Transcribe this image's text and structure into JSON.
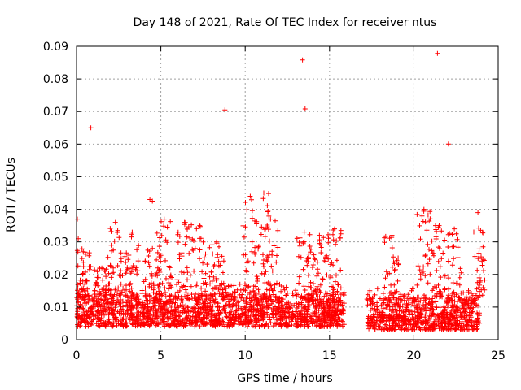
{
  "chart_data": {
    "type": "scatter",
    "title": "Day 148 of 2021, Rate Of TEC Index for receiver ntus",
    "xlabel": "GPS time / hours",
    "ylabel": "ROTI / TECUs",
    "xlim": [
      0,
      25
    ],
    "ylim": [
      0,
      0.09
    ],
    "xticks": [
      {
        "value": 0,
        "label": "0"
      },
      {
        "value": 5,
        "label": "5"
      },
      {
        "value": 10,
        "label": "10"
      },
      {
        "value": 15,
        "label": "15"
      },
      {
        "value": 20,
        "label": "20"
      },
      {
        "value": 25,
        "label": "25"
      }
    ],
    "yticks": [
      {
        "value": 0,
        "label": "0"
      },
      {
        "value": 0.01,
        "label": "0.01"
      },
      {
        "value": 0.02,
        "label": "0.02"
      },
      {
        "value": 0.03,
        "label": "0.03"
      },
      {
        "value": 0.04,
        "label": "0.04"
      },
      {
        "value": 0.05,
        "label": "0.05"
      },
      {
        "value": 0.06,
        "label": "0.06"
      },
      {
        "value": 0.07,
        "label": "0.07"
      },
      {
        "value": 0.08,
        "label": "0.08"
      },
      {
        "value": 0.09,
        "label": "0.09"
      }
    ],
    "grid": true,
    "marker": "+",
    "series": [
      {
        "name": "ROTI",
        "color": "#ff0000",
        "segments": [
          {
            "x": [
              0.0,
              15.9
            ],
            "low": 0.004,
            "base": 0.01,
            "spread": 0.01
          },
          {
            "x": [
              17.2,
              23.9
            ],
            "low": 0.003,
            "base": 0.01,
            "spread": 0.01
          }
        ],
        "bursts": [
          {
            "x": 0.1,
            "y": 0.031
          },
          {
            "x": 0.4,
            "y": 0.027
          },
          {
            "x": 1.5,
            "y": 0.022
          },
          {
            "x": 2.3,
            "y": 0.036
          },
          {
            "x": 3.3,
            "y": 0.033
          },
          {
            "x": 4.5,
            "y": 0.028
          },
          {
            "x": 5.2,
            "y": 0.037
          },
          {
            "x": 6.4,
            "y": 0.036
          },
          {
            "x": 7.3,
            "y": 0.035
          },
          {
            "x": 8.3,
            "y": 0.03
          },
          {
            "x": 10.3,
            "y": 0.044
          },
          {
            "x": 11.1,
            "y": 0.045
          },
          {
            "x": 11.5,
            "y": 0.037
          },
          {
            "x": 13.5,
            "y": 0.033
          },
          {
            "x": 14.4,
            "y": 0.032
          },
          {
            "x": 15.3,
            "y": 0.034
          },
          {
            "x": 18.7,
            "y": 0.032
          },
          {
            "x": 20.6,
            "y": 0.04
          },
          {
            "x": 21.5,
            "y": 0.035
          },
          {
            "x": 22.4,
            "y": 0.034
          },
          {
            "x": 23.8,
            "y": 0.039
          }
        ],
        "outliers": [
          {
            "x": 0.05,
            "y": 0.037
          },
          {
            "x": 0.85,
            "y": 0.065
          },
          {
            "x": 4.35,
            "y": 0.043
          },
          {
            "x": 4.5,
            "y": 0.0425
          },
          {
            "x": 8.8,
            "y": 0.0705
          },
          {
            "x": 13.4,
            "y": 0.0858
          },
          {
            "x": 13.55,
            "y": 0.0708
          },
          {
            "x": 21.4,
            "y": 0.0878
          },
          {
            "x": 22.05,
            "y": 0.06
          }
        ]
      }
    ]
  }
}
